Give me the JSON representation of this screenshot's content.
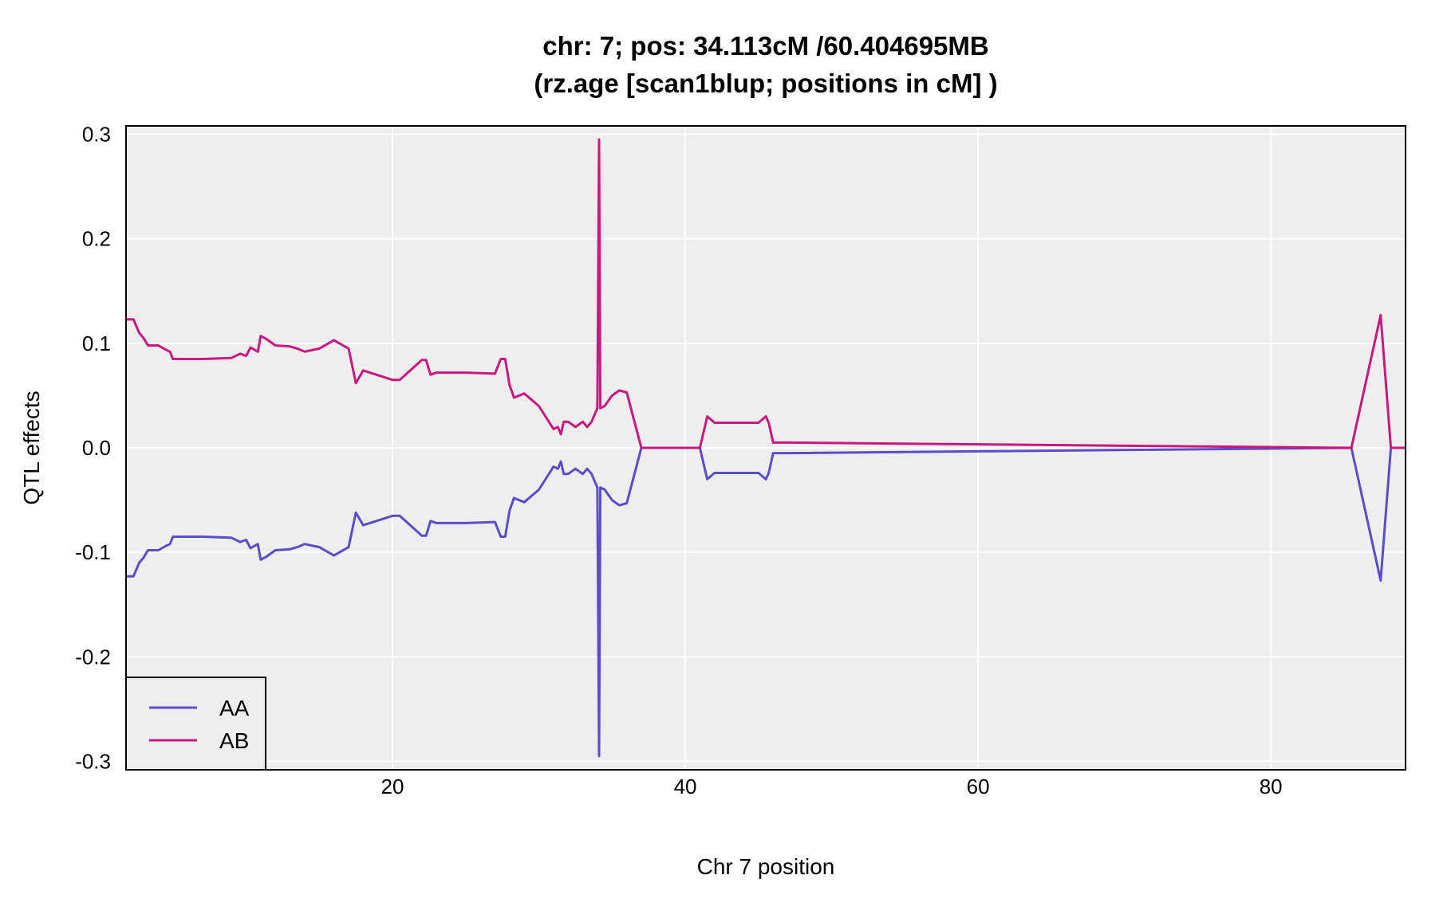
{
  "chart_data": {
    "type": "line",
    "title_line1": "chr: 7; pos: 34.113cM /60.404695MB",
    "title_line2": "(rz.age [scan1blup; positions in cM] )",
    "xlabel": "Chr 7 position",
    "ylabel": "QTL effects",
    "xlim": [
      1.8,
      89.2
    ],
    "ylim": [
      -0.308,
      0.308
    ],
    "xticks": [
      20,
      40,
      60,
      80
    ],
    "yticks": [
      -0.3,
      -0.2,
      -0.1,
      0.0,
      0.1,
      0.2,
      0.3
    ],
    "ytick_labels": [
      "-0.3",
      "-0.2",
      "-0.1",
      "0.0",
      "0.1",
      "0.2",
      "0.3"
    ],
    "grid": true,
    "legend_position": "bottom-left",
    "series": [
      {
        "name": "AA",
        "color": "#5b4dc8",
        "x": [
          1.8,
          2.3,
          2.7,
          3.0,
          3.3,
          4.0,
          4.5,
          4.8,
          5.0,
          7.0,
          9.0,
          9.6,
          10.0,
          10.3,
          10.8,
          11.0,
          11.4,
          12.0,
          13.0,
          13.5,
          14.0,
          15.0,
          16.0,
          17.0,
          17.2,
          17.5,
          18.0,
          20.0,
          20.5,
          22.0,
          22.3,
          22.6,
          23.0,
          25.0,
          27.0,
          27.4,
          27.7,
          28.0,
          28.3,
          29.0,
          30.0,
          31.0,
          31.3,
          31.5,
          31.7,
          32.0,
          32.5,
          33.0,
          33.3,
          33.6,
          34.0,
          34.113,
          34.2,
          34.5,
          35.0,
          35.5,
          36.0,
          37.0,
          40.0,
          41.0,
          41.5,
          42.0,
          43.0,
          44.0,
          45.0,
          45.5,
          45.7,
          46.0,
          47.0,
          85.5,
          87.5,
          88.2,
          89.2
        ],
        "values": [
          -0.123,
          -0.123,
          -0.11,
          -0.105,
          -0.098,
          -0.098,
          -0.094,
          -0.092,
          -0.085,
          -0.085,
          -0.086,
          -0.09,
          -0.088,
          -0.096,
          -0.092,
          -0.107,
          -0.104,
          -0.098,
          -0.097,
          -0.095,
          -0.092,
          -0.095,
          -0.103,
          -0.095,
          -0.082,
          -0.062,
          -0.074,
          -0.065,
          -0.065,
          -0.084,
          -0.084,
          -0.07,
          -0.072,
          -0.072,
          -0.071,
          -0.085,
          -0.085,
          -0.06,
          -0.048,
          -0.052,
          -0.04,
          -0.018,
          -0.02,
          -0.013,
          -0.025,
          -0.025,
          -0.02,
          -0.025,
          -0.02,
          -0.025,
          -0.038,
          -0.295,
          -0.038,
          -0.04,
          -0.05,
          -0.055,
          -0.053,
          0.0,
          0.0,
          0.0,
          -0.03,
          -0.024,
          -0.024,
          -0.024,
          -0.024,
          -0.03,
          -0.024,
          -0.005,
          -0.005,
          0.0,
          -0.127,
          0.0,
          0.0
        ]
      },
      {
        "name": "AB",
        "color": "#c8197e",
        "x": [
          1.8,
          2.3,
          2.7,
          3.0,
          3.3,
          4.0,
          4.5,
          4.8,
          5.0,
          7.0,
          9.0,
          9.6,
          10.0,
          10.3,
          10.8,
          11.0,
          11.4,
          12.0,
          13.0,
          13.5,
          14.0,
          15.0,
          16.0,
          17.0,
          17.2,
          17.5,
          18.0,
          20.0,
          20.5,
          22.0,
          22.3,
          22.6,
          23.0,
          25.0,
          27.0,
          27.4,
          27.7,
          28.0,
          28.3,
          29.0,
          30.0,
          31.0,
          31.3,
          31.5,
          31.7,
          32.0,
          32.5,
          33.0,
          33.3,
          33.6,
          34.0,
          34.113,
          34.2,
          34.5,
          35.0,
          35.5,
          36.0,
          37.0,
          40.0,
          41.0,
          41.5,
          42.0,
          43.0,
          44.0,
          45.0,
          45.5,
          45.7,
          46.0,
          47.0,
          85.5,
          87.5,
          88.2,
          89.2
        ],
        "values": [
          0.123,
          0.123,
          0.11,
          0.105,
          0.098,
          0.098,
          0.094,
          0.092,
          0.085,
          0.085,
          0.086,
          0.09,
          0.088,
          0.096,
          0.092,
          0.107,
          0.104,
          0.098,
          0.097,
          0.095,
          0.092,
          0.095,
          0.103,
          0.095,
          0.082,
          0.062,
          0.074,
          0.065,
          0.065,
          0.084,
          0.084,
          0.07,
          0.072,
          0.072,
          0.071,
          0.085,
          0.085,
          0.06,
          0.048,
          0.052,
          0.04,
          0.018,
          0.02,
          0.013,
          0.025,
          0.025,
          0.02,
          0.025,
          0.02,
          0.025,
          0.038,
          0.295,
          0.038,
          0.04,
          0.05,
          0.055,
          0.053,
          0.0,
          0.0,
          0.0,
          0.03,
          0.024,
          0.024,
          0.024,
          0.024,
          0.03,
          0.024,
          0.005,
          0.005,
          0.0,
          0.127,
          0.0,
          0.0
        ]
      }
    ]
  }
}
